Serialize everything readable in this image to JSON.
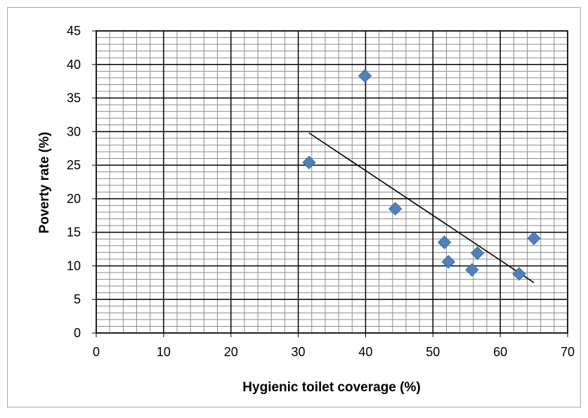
{
  "chart_data": {
    "type": "scatter",
    "title": "",
    "xlabel": "Hygienic toilet coverage (%)",
    "ylabel": "Poverty rate (%)",
    "xlim": [
      0,
      70
    ],
    "ylim": [
      0,
      45
    ],
    "x_major_ticks": [
      0,
      10,
      20,
      30,
      40,
      50,
      60,
      70
    ],
    "y_major_ticks": [
      0,
      5,
      10,
      15,
      20,
      25,
      30,
      35,
      40,
      45
    ],
    "x_minor_step": 2,
    "y_minor_step": 1,
    "grid": true,
    "legend": "none",
    "colors": {
      "marker": "#4f81bd",
      "marker_edge": "#3b6aa0",
      "trendline": "#000000",
      "major_grid": "#000000",
      "minor_grid": "#8c8c8c",
      "frame": "#a6a6a6"
    },
    "marker_shape": "diamond",
    "series": [
      {
        "points": [
          {
            "x": 31.6,
            "y": 25.4
          },
          {
            "x": 39.9,
            "y": 38.3
          },
          {
            "x": 44.4,
            "y": 18.5
          },
          {
            "x": 51.7,
            "y": 13.5
          },
          {
            "x": 52.3,
            "y": 10.6
          },
          {
            "x": 55.8,
            "y": 9.4
          },
          {
            "x": 56.6,
            "y": 11.9
          },
          {
            "x": 62.8,
            "y": 8.8
          },
          {
            "x": 65.0,
            "y": 14.1
          }
        ]
      }
    ],
    "trendline": {
      "type": "linear",
      "start": {
        "x": 31.6,
        "y": 29.8
      },
      "end": {
        "x": 65.0,
        "y": 7.5
      }
    }
  }
}
